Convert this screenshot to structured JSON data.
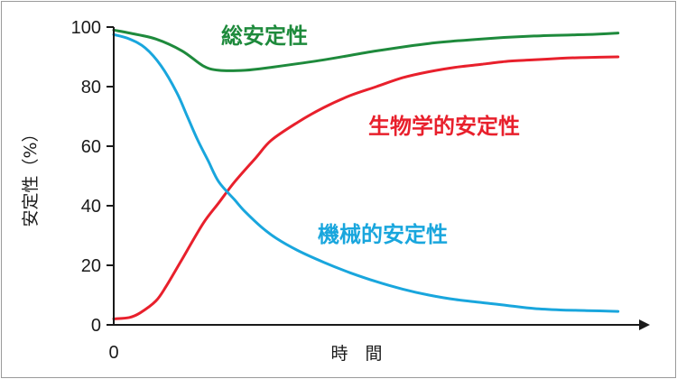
{
  "chart_data": {
    "type": "line",
    "xlabel": "時　間",
    "ylabel": "安定性（%）",
    "ylim": [
      0,
      100
    ],
    "yticks": [
      0,
      20,
      40,
      60,
      80,
      100
    ],
    "xtick_labels": [
      "0"
    ],
    "xlim": [
      0,
      100
    ],
    "grid": false,
    "series": [
      {
        "name": "総安定性",
        "color": "#1e8a3c",
        "x": [
          0,
          3,
          8,
          13,
          17,
          20,
          25,
          30,
          40,
          50,
          60,
          70,
          80,
          90,
          96
        ],
        "y": [
          99,
          98,
          96,
          92,
          87,
          85.5,
          85.5,
          86.5,
          89,
          92,
          94.5,
          96,
          97,
          97.5,
          98
        ]
      },
      {
        "name": "生物学的安定性",
        "color": "#e8202c",
        "x": [
          0,
          3,
          5,
          8,
          10,
          13,
          17,
          20,
          23,
          27,
          30,
          35,
          40,
          45,
          50,
          55,
          60,
          65,
          70,
          75,
          80,
          85,
          90,
          96
        ],
        "y": [
          2,
          2.5,
          4,
          8,
          13,
          22,
          34,
          41,
          48,
          56,
          62,
          68,
          73,
          77,
          80,
          83,
          85,
          86.5,
          87.5,
          88.5,
          89,
          89.5,
          89.8,
          90
        ]
      },
      {
        "name": "機械的安定性",
        "color": "#19a6dd",
        "x": [
          0,
          3,
          6,
          9,
          12,
          14,
          16,
          18,
          20,
          23,
          25,
          28,
          31,
          35,
          40,
          45,
          50,
          55,
          60,
          65,
          70,
          75,
          80,
          85,
          90,
          96
        ],
        "y": [
          97.5,
          96,
          93,
          87,
          78,
          70,
          62,
          55,
          48,
          42,
          38,
          33,
          29,
          25,
          21,
          17.5,
          14.5,
          12,
          10,
          8.5,
          7.5,
          6.5,
          5.5,
          5,
          4.8,
          4.5
        ]
      }
    ]
  }
}
